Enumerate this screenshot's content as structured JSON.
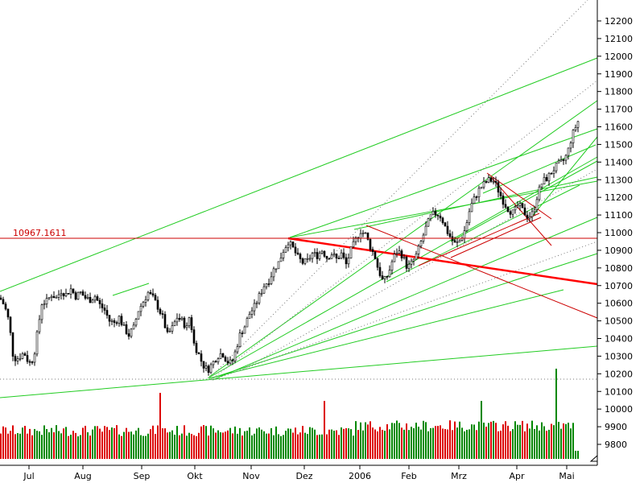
{
  "chart_data": {
    "type": "candlestick",
    "reference_line": {
      "value": 10967.1611,
      "label": "10967.1611",
      "color": "#cc0000"
    },
    "y_axis": {
      "range": [
        9700,
        12300
      ],
      "ticks": [
        12200,
        12100,
        12000,
        11900,
        11800,
        11700,
        11600,
        11500,
        11400,
        11300,
        11200,
        11100,
        11000,
        10900,
        10800,
        10700,
        10600,
        10500,
        10400,
        10300,
        10200,
        10100,
        10000,
        9900,
        9800
      ]
    },
    "x_axis": {
      "labels": [
        "Jul",
        "Aug",
        "Sep",
        "Okt",
        "Nov",
        "Dez",
        "2006",
        "Feb",
        "Mrz",
        "Apr",
        "Mai"
      ]
    },
    "colors": {
      "trend_green": "#22cc22",
      "trend_red": "#cc0000",
      "main_trend": "#ff0000",
      "up_volume": "#008800",
      "down_volume": "#dd0000",
      "candle": "#000000"
    },
    "price_path": [
      [
        0,
        10630
      ],
      [
        5,
        10590
      ],
      [
        8,
        10550
      ],
      [
        12,
        10480
      ],
      [
        15,
        10320
      ],
      [
        20,
        10280
      ],
      [
        25,
        10300
      ],
      [
        30,
        10320
      ],
      [
        35,
        10270
      ],
      [
        38,
        10260
      ],
      [
        42,
        10300
      ],
      [
        46,
        10420
      ],
      [
        52,
        10600
      ],
      [
        58,
        10610
      ],
      [
        64,
        10650
      ],
      [
        70,
        10630
      ],
      [
        76,
        10670
      ],
      [
        82,
        10650
      ],
      [
        88,
        10680
      ],
      [
        94,
        10640
      ],
      [
        100,
        10660
      ],
      [
        106,
        10630
      ],
      [
        112,
        10620
      ],
      [
        118,
        10640
      ],
      [
        124,
        10590
      ],
      [
        130,
        10560
      ],
      [
        136,
        10500
      ],
      [
        142,
        10490
      ],
      [
        148,
        10520
      ],
      [
        154,
        10460
      ],
      [
        160,
        10420
      ],
      [
        166,
        10460
      ],
      [
        172,
        10560
      ],
      [
        178,
        10610
      ],
      [
        184,
        10660
      ],
      [
        190,
        10630
      ],
      [
        196,
        10580
      ],
      [
        202,
        10520
      ],
      [
        208,
        10420
      ],
      [
        214,
        10460
      ],
      [
        220,
        10520
      ],
      [
        226,
        10500
      ],
      [
        232,
        10460
      ],
      [
        236,
        10540
      ],
      [
        240,
        10380
      ],
      [
        246,
        10320
      ],
      [
        252,
        10250
      ],
      [
        258,
        10220
      ],
      [
        264,
        10260
      ],
      [
        270,
        10300
      ],
      [
        276,
        10320
      ],
      [
        282,
        10270
      ],
      [
        288,
        10260
      ],
      [
        292,
        10320
      ],
      [
        298,
        10420
      ],
      [
        304,
        10470
      ],
      [
        310,
        10540
      ],
      [
        316,
        10580
      ],
      [
        322,
        10640
      ],
      [
        328,
        10700
      ],
      [
        334,
        10730
      ],
      [
        340,
        10790
      ],
      [
        346,
        10830
      ],
      [
        352,
        10900
      ],
      [
        358,
        10950
      ],
      [
        364,
        10910
      ],
      [
        370,
        10860
      ],
      [
        376,
        10830
      ],
      [
        382,
        10840
      ],
      [
        388,
        10880
      ],
      [
        394,
        10870
      ],
      [
        400,
        10900
      ],
      [
        406,
        10860
      ],
      [
        412,
        10880
      ],
      [
        418,
        10850
      ],
      [
        424,
        10880
      ],
      [
        430,
        10820
      ],
      [
        436,
        10900
      ],
      [
        442,
        10960
      ],
      [
        448,
        11010
      ],
      [
        454,
        10990
      ],
      [
        460,
        10920
      ],
      [
        466,
        10860
      ],
      [
        470,
        10790
      ],
      [
        476,
        10720
      ],
      [
        482,
        10760
      ],
      [
        488,
        10850
      ],
      [
        494,
        10900
      ],
      [
        500,
        10870
      ],
      [
        506,
        10800
      ],
      [
        512,
        10830
      ],
      [
        518,
        10880
      ],
      [
        524,
        10960
      ],
      [
        530,
        11040
      ],
      [
        536,
        11100
      ],
      [
        542,
        11110
      ],
      [
        548,
        11090
      ],
      [
        554,
        11020
      ],
      [
        560,
        10970
      ],
      [
        566,
        10930
      ],
      [
        572,
        10960
      ],
      [
        578,
        11020
      ],
      [
        584,
        11140
      ],
      [
        590,
        11200
      ],
      [
        596,
        11250
      ],
      [
        602,
        11280
      ],
      [
        608,
        11300
      ],
      [
        614,
        11290
      ],
      [
        620,
        11230
      ],
      [
        626,
        11170
      ],
      [
        632,
        11130
      ],
      [
        638,
        11110
      ],
      [
        644,
        11160
      ],
      [
        650,
        11120
      ],
      [
        656,
        11090
      ],
      [
        662,
        11110
      ],
      [
        668,
        11220
      ],
      [
        674,
        11290
      ],
      [
        680,
        11310
      ],
      [
        686,
        11350
      ],
      [
        692,
        11380
      ],
      [
        698,
        11400
      ],
      [
        702,
        11420
      ],
      [
        706,
        11470
      ],
      [
        710,
        11540
      ],
      [
        714,
        11590
      ],
      [
        718,
        11630
      ]
    ]
  }
}
